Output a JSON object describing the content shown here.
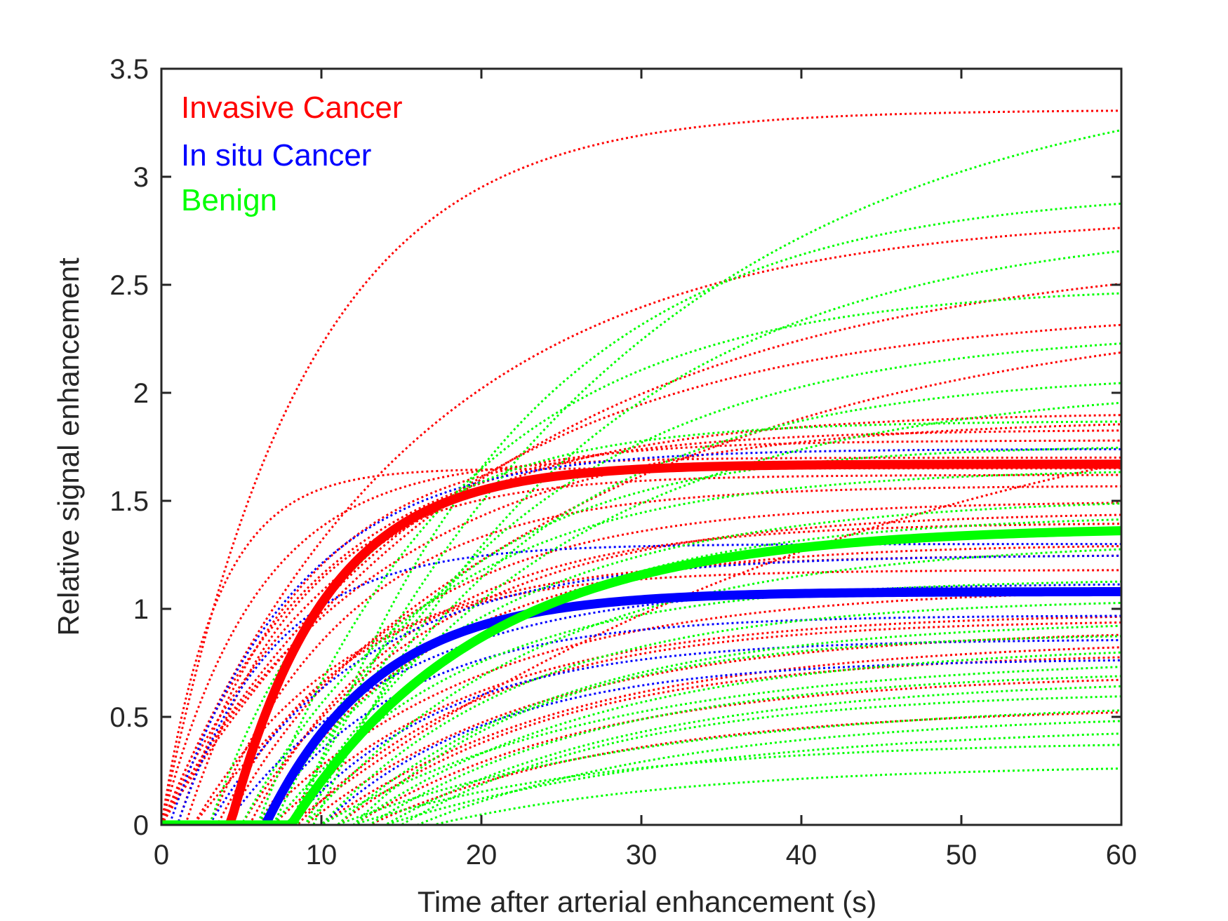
{
  "chart_data": {
    "type": "line",
    "title": "",
    "xlabel": "Time after arterial enhancement (s)",
    "ylabel": "Relative signal enhancement",
    "xlim": [
      0,
      60
    ],
    "ylim": [
      0,
      3.5
    ],
    "xticks": [
      0,
      10,
      20,
      30,
      40,
      50,
      60
    ],
    "yticks": [
      0,
      0.5,
      1,
      1.5,
      2,
      2.5,
      3,
      3.5
    ],
    "xtick_labels": [
      "0",
      "10",
      "20",
      "30",
      "40",
      "50",
      "60"
    ],
    "ytick_labels": [
      "0",
      "0.5",
      "1",
      "1.5",
      "2",
      "2.5",
      "3",
      "3.5"
    ],
    "grid": false,
    "legend_position": "top-left",
    "colors": {
      "invasive": "#ff0000",
      "insitu": "#0000ff",
      "benign": "#00ff00"
    },
    "legend": [
      {
        "label": "Invasive Cancer",
        "color": "#ff0000"
      },
      {
        "label": "In situ Cancer",
        "color": "#0000ff"
      },
      {
        "label": "Benign",
        "color": "#00ff00"
      }
    ],
    "curve_model": "y = A * (1 - exp(-(t - t0) / tau)) for t > t0, else 0",
    "mean_curves": [
      {
        "name": "Invasive Cancer mean",
        "color": "#ff0000",
        "A": 1.67,
        "t0": 4.3,
        "tau": 6.0
      },
      {
        "name": "In situ Cancer mean",
        "color": "#0000ff",
        "A": 1.08,
        "t0": 6.5,
        "tau": 7.0
      },
      {
        "name": "Benign mean",
        "color": "#00ff00",
        "A": 1.38,
        "t0": 8.1,
        "tau": 12.0
      }
    ],
    "series": [
      {
        "group": "invasive",
        "A": 3.31,
        "t0": 0.0,
        "tau": 9.0
      },
      {
        "group": "invasive",
        "A": 2.83,
        "t0": 0.0,
        "tau": 16.0
      },
      {
        "group": "invasive",
        "A": 2.68,
        "t0": 0.0,
        "tau": 22.0
      },
      {
        "group": "invasive",
        "A": 2.4,
        "t0": 0.0,
        "tau": 18.0
      },
      {
        "group": "invasive",
        "A": 2.45,
        "t0": 2.0,
        "tau": 26.0
      },
      {
        "group": "invasive",
        "A": 2.3,
        "t0": 8.0,
        "tau": 40.0
      },
      {
        "group": "invasive",
        "A": 1.91,
        "t0": 0.0,
        "tau": 12.0
      },
      {
        "group": "invasive",
        "A": 1.88,
        "t0": 0.0,
        "tau": 14.0
      },
      {
        "group": "invasive",
        "A": 1.83,
        "t0": 0.0,
        "tau": 10.0
      },
      {
        "group": "invasive",
        "A": 1.78,
        "t0": 1.0,
        "tau": 8.0
      },
      {
        "group": "invasive",
        "A": 1.7,
        "t0": 0.0,
        "tau": 6.0
      },
      {
        "group": "invasive",
        "A": 1.65,
        "t0": 0.0,
        "tau": 3.5
      },
      {
        "group": "invasive",
        "A": 1.62,
        "t0": 1.5,
        "tau": 7.0
      },
      {
        "group": "invasive",
        "A": 1.57,
        "t0": 3.0,
        "tau": 9.0
      },
      {
        "group": "invasive",
        "A": 1.5,
        "t0": 4.0,
        "tau": 11.0
      },
      {
        "group": "invasive",
        "A": 1.45,
        "t0": 5.0,
        "tau": 12.0
      },
      {
        "group": "invasive",
        "A": 1.4,
        "t0": 5.5,
        "tau": 10.0
      },
      {
        "group": "invasive",
        "A": 1.3,
        "t0": 6.0,
        "tau": 11.0
      },
      {
        "group": "invasive",
        "A": 1.25,
        "t0": 2.0,
        "tau": 10.0
      },
      {
        "group": "invasive",
        "A": 1.18,
        "t0": 3.5,
        "tau": 8.0
      },
      {
        "group": "invasive",
        "A": 1.1,
        "t0": 6.0,
        "tau": 14.0
      },
      {
        "group": "invasive",
        "A": 0.98,
        "t0": 7.0,
        "tau": 13.0
      },
      {
        "group": "invasive",
        "A": 0.95,
        "t0": 8.5,
        "tau": 12.0
      },
      {
        "group": "invasive",
        "A": 0.91,
        "t0": 9.0,
        "tau": 15.0
      },
      {
        "group": "invasive",
        "A": 0.86,
        "t0": 10.0,
        "tau": 16.0
      },
      {
        "group": "invasive",
        "A": 0.8,
        "t0": 11.0,
        "tau": 14.0
      },
      {
        "group": "invasive",
        "A": 0.7,
        "t0": 12.0,
        "tau": 15.0
      },
      {
        "group": "invasive",
        "A": 0.55,
        "t0": 13.0,
        "tau": 16.0
      },
      {
        "group": "insitu",
        "A": 1.74,
        "t0": 0.5,
        "tau": 8.0
      },
      {
        "group": "insitu",
        "A": 1.3,
        "t0": 1.0,
        "tau": 6.0
      },
      {
        "group": "insitu",
        "A": 1.25,
        "t0": 3.0,
        "tau": 10.0
      },
      {
        "group": "insitu",
        "A": 1.12,
        "t0": 4.0,
        "tau": 11.0
      },
      {
        "group": "insitu",
        "A": 0.97,
        "t0": 6.0,
        "tau": 9.0
      },
      {
        "group": "insitu",
        "A": 0.86,
        "t0": 8.0,
        "tau": 10.0
      },
      {
        "group": "insitu",
        "A": 0.77,
        "t0": 10.0,
        "tau": 11.0
      },
      {
        "group": "benign",
        "A": 3.55,
        "t0": 8.0,
        "tau": 22.0
      },
      {
        "group": "benign",
        "A": 2.95,
        "t0": 8.5,
        "tau": 14.0
      },
      {
        "group": "benign",
        "A": 2.8,
        "t0": 9.5,
        "tau": 17.0
      },
      {
        "group": "benign",
        "A": 2.5,
        "t0": 6.0,
        "tau": 13.0
      },
      {
        "group": "benign",
        "A": 2.3,
        "t0": 8.0,
        "tau": 15.0
      },
      {
        "group": "benign",
        "A": 2.1,
        "t0": 9.0,
        "tau": 14.0
      },
      {
        "group": "benign",
        "A": 2.05,
        "t0": 8.0,
        "tau": 17.0
      },
      {
        "group": "benign",
        "A": 1.87,
        "t0": 3.0,
        "tau": 9.0
      },
      {
        "group": "benign",
        "A": 1.76,
        "t0": 7.0,
        "tau": 11.0
      },
      {
        "group": "benign",
        "A": 1.65,
        "t0": 5.0,
        "tau": 12.0
      },
      {
        "group": "benign",
        "A": 1.52,
        "t0": 6.0,
        "tau": 14.0
      },
      {
        "group": "benign",
        "A": 1.44,
        "t0": 8.0,
        "tau": 13.0
      },
      {
        "group": "benign",
        "A": 1.32,
        "t0": 9.0,
        "tau": 15.0
      },
      {
        "group": "benign",
        "A": 1.14,
        "t0": 7.0,
        "tau": 12.0
      },
      {
        "group": "benign",
        "A": 1.05,
        "t0": 10.0,
        "tau": 13.0
      },
      {
        "group": "benign",
        "A": 0.95,
        "t0": 11.0,
        "tau": 14.0
      },
      {
        "group": "benign",
        "A": 0.89,
        "t0": 12.0,
        "tau": 12.0
      },
      {
        "group": "benign",
        "A": 0.84,
        "t0": 12.0,
        "tau": 16.0
      },
      {
        "group": "benign",
        "A": 0.78,
        "t0": 10.0,
        "tau": 18.0
      },
      {
        "group": "benign",
        "A": 0.72,
        "t0": 13.0,
        "tau": 15.0
      },
      {
        "group": "benign",
        "A": 0.68,
        "t0": 14.0,
        "tau": 16.0
      },
      {
        "group": "benign",
        "A": 0.62,
        "t0": 15.0,
        "tau": 14.0
      },
      {
        "group": "benign",
        "A": 0.58,
        "t0": 11.0,
        "tau": 20.0
      },
      {
        "group": "benign",
        "A": 0.52,
        "t0": 16.0,
        "tau": 17.0
      },
      {
        "group": "benign",
        "A": 0.47,
        "t0": 14.0,
        "tau": 20.0
      },
      {
        "group": "benign",
        "A": 0.39,
        "t0": 12.0,
        "tau": 16.0
      },
      {
        "group": "benign",
        "A": 0.28,
        "t0": 17.0,
        "tau": 16.0
      }
    ]
  }
}
